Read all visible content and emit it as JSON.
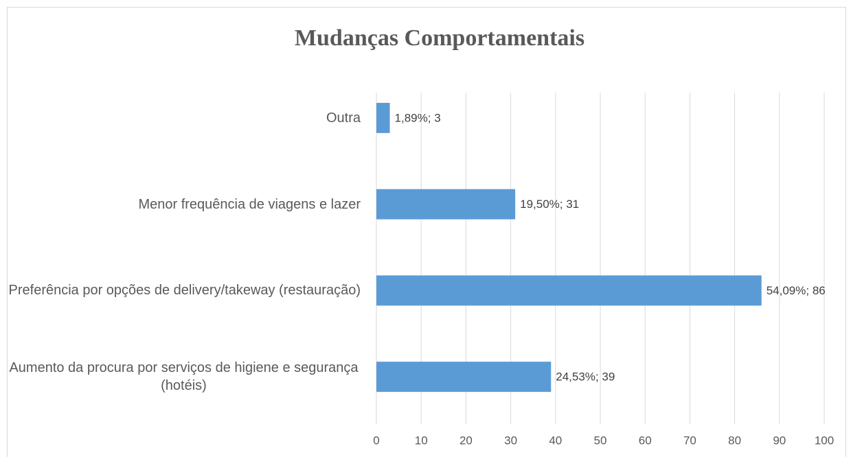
{
  "chart_data": {
    "type": "bar",
    "orientation": "horizontal",
    "title": "Mudanças  Comportamentais",
    "categories": [
      "Outra",
      "Menor frequência de viagens e lazer",
      "Preferência por opções de delivery/takeway (restauração)",
      "Aumento da procura por serviços de higiene e segurança (hotéis)"
    ],
    "values": [
      3,
      31,
      86,
      39
    ],
    "value_labels": [
      "1,89%; 3",
      "19,50%; 31",
      "54,09%; 86",
      "24,53%; 39"
    ],
    "color": "#5b9bd5",
    "xlim": [
      0,
      100
    ],
    "xticks": [
      0,
      10,
      20,
      30,
      40,
      50,
      60,
      70,
      80,
      90,
      100
    ],
    "grid": true
  }
}
